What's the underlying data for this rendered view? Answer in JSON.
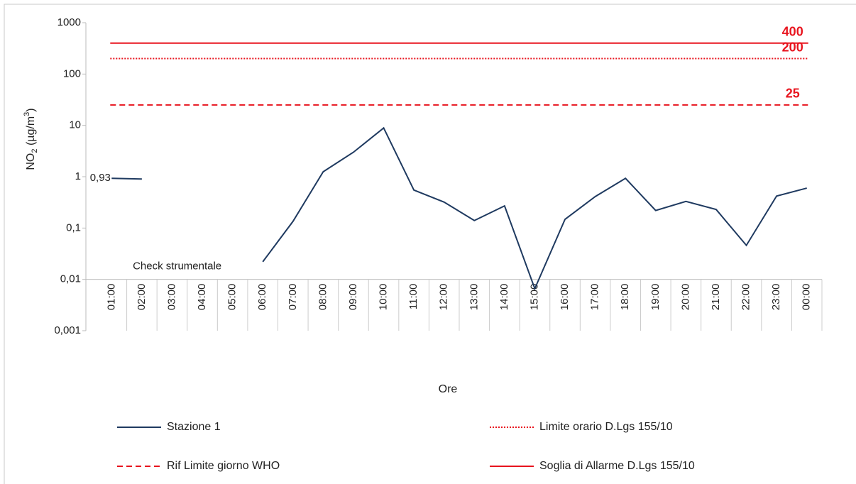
{
  "chart_data": {
    "type": "line",
    "y_label": {
      "main": "NO",
      "sub": "2",
      "mid": " (µg/m",
      "sup": "3",
      "end": ")"
    },
    "x_label": "Ore",
    "annotation": "Check strumentale",
    "log_y": true,
    "ylim": [
      0.001,
      1000
    ],
    "yticks": [
      {
        "value": 0.001,
        "label": "0,001"
      },
      {
        "value": 0.01,
        "label": "0,01"
      },
      {
        "value": 0.1,
        "label": "0,1"
      },
      1,
      10,
      100,
      1000
    ],
    "x_axis_at": 0.01,
    "categories": [
      "01:00",
      "02:00",
      "03:00",
      "04:00",
      "05:00",
      "06:00",
      "07:00",
      "08:00",
      "09:00",
      "10:00",
      "11:00",
      "12:00",
      "13:00",
      "14:00",
      "15:00",
      "16:00",
      "17:00",
      "18:00",
      "19:00",
      "20:00",
      "21:00",
      "22:00",
      "23:00",
      "00:00"
    ],
    "series": [
      {
        "name": "Stazione 1",
        "color": "#1f3a60",
        "style": "solid",
        "values": [
          0.93,
          0.9,
          null,
          null,
          null,
          0.022,
          0.135,
          1.25,
          3.0,
          8.9,
          0.55,
          0.32,
          0.14,
          0.27,
          0.0066,
          0.148,
          0.41,
          0.93,
          0.22,
          0.33,
          0.23,
          0.046,
          0.42,
          0.6
        ],
        "value_labels": [
          "0,93",
          null,
          null,
          null,
          null,
          null,
          null,
          null,
          null,
          null,
          null,
          null,
          null,
          null,
          null,
          null,
          null,
          null,
          null,
          null,
          null,
          null,
          null,
          null
        ]
      },
      {
        "name": "Limite orario D.Lgs 155/10",
        "color": "#e8141e",
        "style": "dotted",
        "value": 200
      },
      {
        "name": "Rif Limite giorno WHO",
        "color": "#e8141e",
        "style": "dashed",
        "value": 25
      },
      {
        "name": "Soglia di Allarme D.Lgs 155/10",
        "color": "#e8141e",
        "style": "solid",
        "value": 400
      }
    ]
  }
}
